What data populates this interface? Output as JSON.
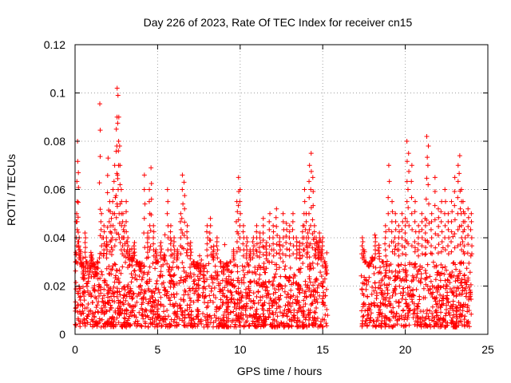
{
  "chart_data": {
    "type": "scatter",
    "title": "Day 226 of 2023, Rate Of TEC Index for receiver cn15",
    "xlabel": "GPS time / hours",
    "ylabel": "ROTI / TECUs",
    "xlim": [
      0,
      25
    ],
    "ylim": [
      0,
      0.12
    ],
    "xticks": [
      0,
      5,
      10,
      15,
      20,
      25
    ],
    "xtick_labels": [
      "0",
      "5",
      "10",
      "15",
      "20",
      "25"
    ],
    "yticks": [
      0,
      0.02,
      0.04,
      0.06,
      0.08,
      0.1,
      0.12
    ],
    "ytick_labels": [
      "0",
      "0.02",
      "0.04",
      "0.06",
      "0.08",
      "0.1",
      "0.12"
    ],
    "grid": true,
    "marker": "plus",
    "color": "#ff0000",
    "data_gap_hours": [
      15.3,
      17.3
    ],
    "series": [
      {
        "name": "ROTI",
        "x": [
          0.05,
          0.1,
          0.15,
          0.2,
          0.25,
          0.3,
          0.4,
          0.5,
          0.6,
          0.7,
          0.8,
          0.9,
          1.0,
          1.1,
          1.2,
          1.35,
          1.5,
          1.6,
          1.75,
          1.9,
          2.0,
          2.1,
          2.2,
          2.3,
          2.4,
          2.5,
          2.55,
          2.6,
          2.65,
          2.7,
          2.8,
          2.9,
          3.0,
          3.1,
          3.2,
          3.3,
          3.45,
          3.6,
          3.75,
          3.9,
          4.0,
          4.2,
          4.4,
          4.5,
          4.6,
          4.75,
          4.9,
          5.0,
          5.2,
          5.4,
          5.6,
          5.8,
          6.0,
          6.2,
          6.4,
          6.5,
          6.6,
          6.8,
          7.0,
          7.2,
          7.4,
          7.6,
          7.8,
          8.0,
          8.2,
          8.4,
          8.6,
          8.8,
          9.0,
          9.2,
          9.4,
          9.6,
          9.8,
          9.9,
          10.0,
          10.2,
          10.4,
          10.6,
          10.8,
          11.0,
          11.2,
          11.4,
          11.6,
          11.8,
          12.0,
          12.2,
          12.4,
          12.6,
          12.8,
          13.0,
          13.2,
          13.4,
          13.6,
          13.8,
          13.9,
          14.0,
          14.1,
          14.2,
          14.3,
          14.4,
          14.5,
          14.6,
          14.7,
          14.8,
          14.9,
          15.0,
          15.1,
          15.2,
          17.4,
          17.5,
          17.6,
          17.8,
          18.0,
          18.2,
          18.4,
          18.6,
          18.8,
          19.0,
          19.2,
          19.4,
          19.6,
          19.8,
          20.0,
          20.1,
          20.2,
          20.4,
          20.6,
          20.8,
          21.0,
          21.2,
          21.3,
          21.4,
          21.6,
          21.8,
          22.0,
          22.2,
          22.4,
          22.6,
          22.8,
          23.0,
          23.2,
          23.3,
          23.4,
          23.5,
          23.6,
          23.8,
          24.0
        ],
        "values": [
          0.03,
          0.05,
          0.08,
          0.067,
          0.04,
          0.035,
          0.028,
          0.025,
          0.042,
          0.03,
          0.022,
          0.026,
          0.033,
          0.028,
          0.024,
          0.03,
          0.0955,
          0.05,
          0.045,
          0.04,
          0.073,
          0.055,
          0.048,
          0.06,
          0.07,
          0.085,
          0.102,
          0.099,
          0.09,
          0.078,
          0.06,
          0.05,
          0.045,
          0.055,
          0.04,
          0.035,
          0.032,
          0.038,
          0.03,
          0.028,
          0.026,
          0.066,
          0.042,
          0.06,
          0.069,
          0.045,
          0.035,
          0.03,
          0.038,
          0.033,
          0.06,
          0.045,
          0.04,
          0.035,
          0.05,
          0.066,
          0.063,
          0.045,
          0.038,
          0.03,
          0.028,
          0.025,
          0.022,
          0.045,
          0.048,
          0.035,
          0.04,
          0.03,
          0.025,
          0.028,
          0.03,
          0.035,
          0.055,
          0.065,
          0.06,
          0.045,
          0.04,
          0.035,
          0.04,
          0.045,
          0.042,
          0.048,
          0.038,
          0.05,
          0.045,
          0.052,
          0.04,
          0.05,
          0.046,
          0.045,
          0.05,
          0.04,
          0.038,
          0.045,
          0.06,
          0.05,
          0.042,
          0.07,
          0.075,
          0.065,
          0.045,
          0.04,
          0.038,
          0.042,
          0.035,
          0.04,
          0.03,
          0.025,
          0.04,
          0.035,
          0.03,
          0.028,
          0.032,
          0.04,
          0.037,
          0.03,
          0.045,
          0.07,
          0.055,
          0.05,
          0.045,
          0.05,
          0.048,
          0.08,
          0.075,
          0.07,
          0.055,
          0.045,
          0.05,
          0.048,
          0.082,
          0.078,
          0.05,
          0.065,
          0.052,
          0.055,
          0.06,
          0.05,
          0.055,
          0.065,
          0.07,
          0.074,
          0.06,
          0.055,
          0.05,
          0.052,
          0.05
        ]
      }
    ],
    "background_band": {
      "min": 0.003,
      "max": 0.03,
      "hours": [
        [
          0.0,
          15.3
        ],
        [
          17.3,
          24.0
        ]
      ]
    }
  }
}
